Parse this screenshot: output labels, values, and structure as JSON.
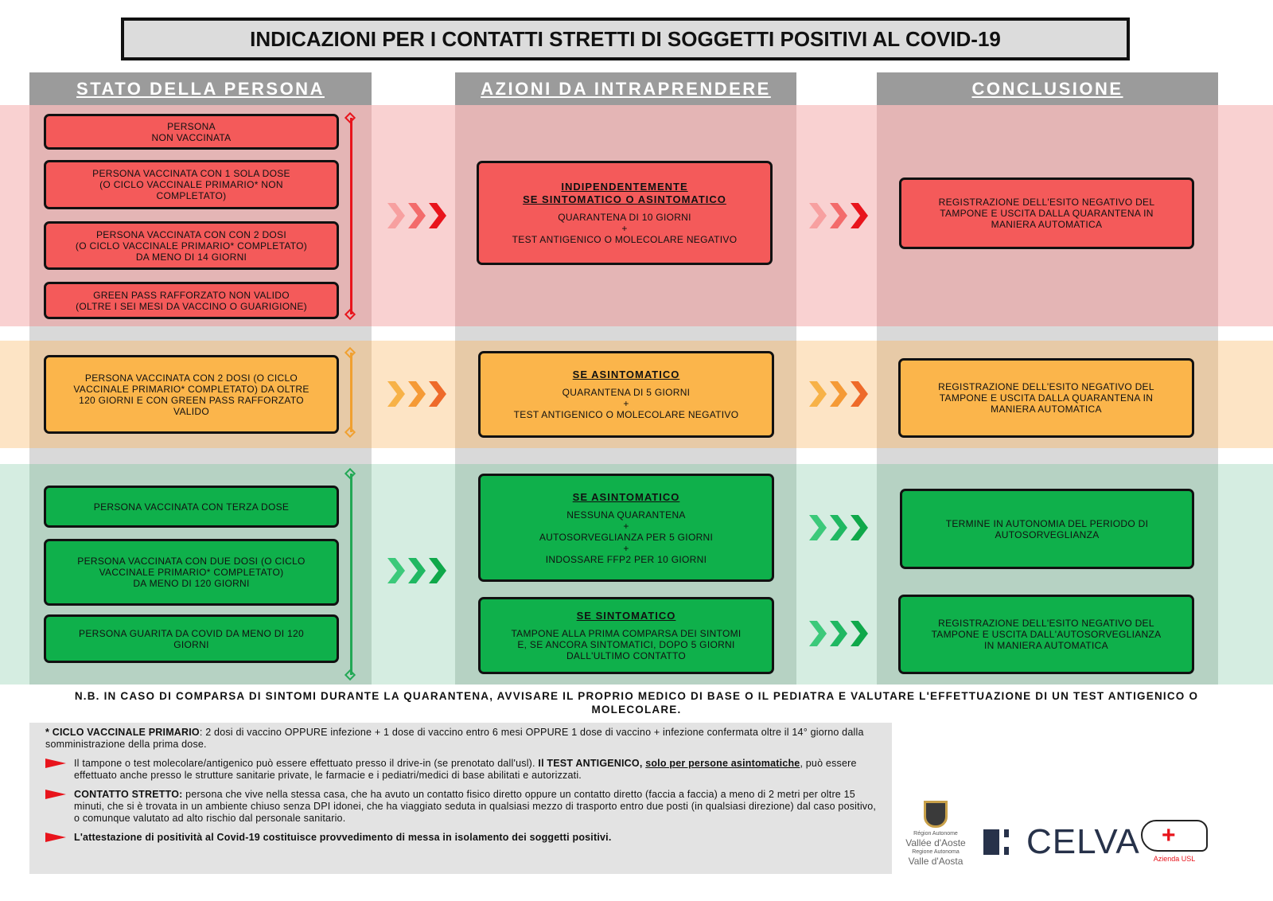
{
  "title": "INDICAZIONI PER I CONTATTI STRETTI DI SOGGETTI POSITIVI AL COVID-19",
  "headers": [
    "STATO DELLA PERSONA",
    "AZIONI DA INTRAPRENDERE",
    "CONCLUSIONE"
  ],
  "colors": {
    "red": "#f45a5a",
    "orange": "#fbb54b",
    "green": "#0fb04b",
    "red_band": "#f9d1d1",
    "orange_band": "#fde4c5",
    "green_band": "#d5ede1",
    "header": "#9b9b9b"
  },
  "red": {
    "states": [
      [
        "PERSONA",
        "NON VACCINATA"
      ],
      [
        "PERSONA VACCINATA CON 1 SOLA DOSE",
        "(O CICLO VACCINALE PRIMARIO* NON",
        "COMPLETATO)"
      ],
      [
        "PERSONA VACCINATA CON CON 2 DOSI",
        "(O CICLO VACCINALE PRIMARIO* COMPLETATO)",
        "DA MENO DI 14 GIORNI"
      ],
      [
        "GREEN PASS RAFFORZATO NON VALIDO",
        "(OLTRE I SEI MESI DA VACCINO O GUARIGIONE)"
      ]
    ],
    "action": {
      "title": [
        "INDIPENDENTEMENTE",
        "SE SINTOMATICO O ASINTOMATICO"
      ],
      "lines": [
        "QUARANTENA DI 10 GIORNI",
        "+",
        "TEST ANTIGENICO O MOLECOLARE NEGATIVO"
      ]
    },
    "conclusion": [
      "REGISTRAZIONE DELL'ESITO NEGATIVO DEL",
      "TAMPONE E USCITA DALLA QUARANTENA IN",
      "MANIERA AUTOMATICA"
    ]
  },
  "orange": {
    "states": [
      [
        "PERSONA VACCINATA CON 2 DOSI (O CICLO",
        "VACCINALE PRIMARIO* COMPLETATO) DA OLTRE",
        "120 GIORNI E CON GREEN PASS RAFFORZATO",
        "VALIDO"
      ]
    ],
    "action": {
      "title": [
        "SE ASINTOMATICO"
      ],
      "lines": [
        "QUARANTENA DI 5 GIORNI",
        "+",
        "TEST ANTIGENICO O MOLECOLARE NEGATIVO"
      ]
    },
    "conclusion": [
      "REGISTRAZIONE DELL'ESITO NEGATIVO DEL",
      "TAMPONE E USCITA DALLA QUARANTENA IN",
      "MANIERA AUTOMATICA"
    ]
  },
  "green": {
    "states": [
      [
        "PERSONA VACCINATA CON TERZA DOSE"
      ],
      [
        "PERSONA VACCINATA CON DUE DOSI (O CICLO",
        "VACCINALE PRIMARIO* COMPLETATO)",
        "DA MENO DI 120 GIORNI"
      ],
      [
        "PERSONA GUARITA DA COVID DA MENO DI 120",
        "GIORNI"
      ]
    ],
    "action1": {
      "title": [
        "SE ASINTOMATICO"
      ],
      "lines": [
        "NESSUNA QUARANTENA",
        "+",
        "AUTOSORVEGLIANZA PER 5 GIORNI",
        "+",
        "INDOSSARE FFP2 PER 10 GIORNI"
      ]
    },
    "conclusion1": [
      "TERMINE IN AUTONOMIA DEL PERIODO DI",
      "AUTOSORVEGLIANZA"
    ],
    "action2": {
      "title": [
        "SE SINTOMATICO"
      ],
      "lines": [
        "TAMPONE ALLA PRIMA COMPARSA DEI SINTOMI",
        "E, SE ANCORA SINTOMATICI, DOPO 5 GIORNI",
        "DALL'ULTIMO CONTATTO"
      ]
    },
    "conclusion2": [
      "REGISTRAZIONE DELL'ESITO NEGATIVO DEL",
      "TAMPONE E USCITA DALL'AUTOSORVEGLIANZA",
      "IN MANIERA AUTOMATICA"
    ]
  },
  "nb": "N.B. IN CASO DI COMPARSA DI SINTOMI DURANTE LA QUARANTENA, AVVISARE IL PROPRIO MEDICO DI BASE O IL PEDIATRA E VALUTARE L'EFFETTUAZIONE DI UN TEST ANTIGENICO O MOLECOLARE.",
  "footer": {
    "ciclo_label": "* CICLO VACCINALE PRIMARIO",
    "ciclo_text": ": 2 dosi di vaccino OPPURE infezione + 1 dose di vaccino entro 6 mesi OPPURE 1 dose di vaccino + infezione confermata oltre il 14° giorno dalla somministrazione della prima dose.",
    "p1_a": "Il tampone o test molecolare/antigenico può essere effettuato presso il drive-in (se prenotato dall'usl). ",
    "p1_b": "Il TEST ANTIGENICO, ",
    "p1_c": "solo per persone asintomatiche",
    "p1_d": ", può essere effettuato anche presso le strutture sanitarie private, le farmacie e i pediatri/medici di base abilitati e autorizzati.",
    "p2_label": "CONTATTO STRETTO:",
    "p2_text": " persona che vive nella stessa casa, che ha avuto un contatto fisico diretto oppure un contatto diretto (faccia a faccia) a meno di 2 metri per oltre 15 minuti, che si è trovata in un ambiente chiuso senza DPI idonei, che ha viaggiato seduta in qualsiasi mezzo di trasporto entro due posti (in qualsiasi direzione) dal caso positivo, o comunque valutato ad alto rischio dal personale sanitario.",
    "p3": "L'attestazione di positività al Covid-19 costituisce provvedimento di messa in isolamento dei soggetti positivi."
  },
  "logos": {
    "region": [
      "Région Autonome",
      "Vallée d'Aoste",
      "Regione Autonoma",
      "Valle d'Aosta"
    ],
    "celva": "CELVA",
    "usl": "Azienda USL"
  }
}
